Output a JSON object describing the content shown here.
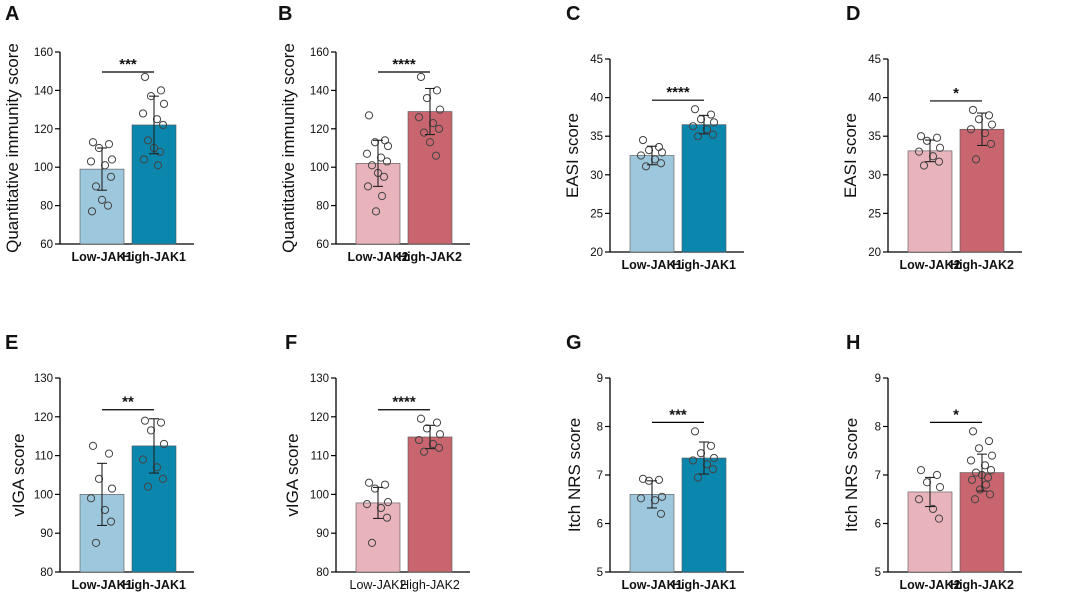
{
  "figure_title": "",
  "colors": {
    "low_jak1": "#9dc7dd",
    "high_jak1": "#0b86ad",
    "low_jak2": "#e8b3bb",
    "high_jak2": "#c9656f"
  },
  "chart_data": [
    {
      "panel": "A",
      "type": "bar",
      "title": "",
      "xlabel": "",
      "ylabel": "Quantitative immunity score",
      "ylim": [
        60,
        160
      ],
      "yticks": [
        60,
        80,
        100,
        120,
        140,
        160
      ],
      "categories": [
        "Low-JAK1",
        "High-JAK1"
      ],
      "values": [
        99,
        122
      ],
      "errors": [
        11,
        15
      ],
      "points": [
        [
          113,
          112,
          110,
          104,
          103,
          101,
          95,
          90,
          83,
          80,
          77
        ],
        [
          147,
          140,
          137,
          133,
          128,
          125,
          122,
          114,
          110,
          108,
          104,
          101
        ]
      ],
      "significance": "***",
      "category_label_bold": true,
      "colors": [
        "#9dc7dd",
        "#0b86ad"
      ]
    },
    {
      "panel": "B",
      "type": "bar",
      "title": "",
      "xlabel": "",
      "ylabel": "Quantitative immunity score",
      "ylim": [
        60,
        160
      ],
      "yticks": [
        60,
        80,
        100,
        120,
        140,
        160
      ],
      "categories": [
        "Low-JAK2",
        "High-JAK2"
      ],
      "values": [
        102,
        129
      ],
      "errors": [
        12,
        12
      ],
      "points": [
        [
          127,
          114,
          113,
          111,
          107,
          105,
          103,
          101,
          97,
          95,
          90,
          85,
          77
        ],
        [
          147,
          140,
          136,
          130,
          126,
          123,
          120,
          118,
          113,
          106
        ]
      ],
      "significance": "****",
      "category_label_bold": true,
      "colors": [
        "#e8b3bb",
        "#c9656f"
      ]
    },
    {
      "panel": "C",
      "type": "bar",
      "title": "",
      "xlabel": "",
      "ylabel": "EASI score",
      "ylim": [
        20,
        45
      ],
      "yticks": [
        20,
        25,
        30,
        35,
        40,
        45
      ],
      "categories": [
        "Low-JAK1",
        "High-JAK1"
      ],
      "values": [
        32.5,
        36.5
      ],
      "errors": [
        1.2,
        1.2
      ],
      "points": [
        [
          34.5,
          33.6,
          33.2,
          32.9,
          32.5,
          32.0,
          31.5,
          31.1
        ],
        [
          38.5,
          37.8,
          37.2,
          36.8,
          36.3,
          35.9,
          35.2,
          35.0
        ]
      ],
      "significance": "****",
      "category_label_bold": true,
      "colors": [
        "#9dc7dd",
        "#0b86ad"
      ]
    },
    {
      "panel": "D",
      "type": "bar",
      "title": "",
      "xlabel": "",
      "ylabel": "EASI score",
      "ylim": [
        20,
        45
      ],
      "yticks": [
        20,
        25,
        30,
        35,
        40,
        45
      ],
      "categories": [
        "Low-JAK2",
        "High-JAK2"
      ],
      "values": [
        33.1,
        35.9
      ],
      "errors": [
        1.4,
        2.1
      ],
      "points": [
        [
          35.0,
          34.8,
          34.4,
          33.5,
          33.0,
          32.4,
          31.7,
          31.2
        ],
        [
          38.4,
          37.7,
          37.2,
          36.5,
          35.9,
          35.4,
          34.0,
          32.0
        ]
      ],
      "significance": "*",
      "category_label_bold": true,
      "colors": [
        "#e8b3bb",
        "#c9656f"
      ]
    },
    {
      "panel": "E",
      "type": "bar",
      "title": "",
      "xlabel": "",
      "ylabel": "vIGA score",
      "ylim": [
        80,
        130
      ],
      "yticks": [
        80,
        90,
        100,
        110,
        120,
        130
      ],
      "categories": [
        "Low-JAK1",
        "High-JAK1"
      ],
      "values": [
        100,
        112.5
      ],
      "errors": [
        8,
        7
      ],
      "points": [
        [
          112.5,
          110.5,
          104,
          101.5,
          99,
          96,
          93,
          87.5
        ],
        [
          119,
          118.5,
          116.5,
          113,
          109,
          107,
          104,
          102
        ]
      ],
      "significance": "**",
      "category_label_bold": true,
      "colors": [
        "#9dc7dd",
        "#0b86ad"
      ]
    },
    {
      "panel": "F",
      "type": "bar",
      "title": "",
      "xlabel": "",
      "ylabel": "vIGA score",
      "ylim": [
        80,
        130
      ],
      "yticks": [
        80,
        90,
        100,
        110,
        120,
        130
      ],
      "categories": [
        "Low-JAK2",
        "High-JAK2"
      ],
      "values": [
        97.8,
        114.8
      ],
      "errors": [
        4,
        3
      ],
      "points": [
        [
          103,
          102.5,
          101.5,
          98,
          97.5,
          96.5,
          94,
          87.5
        ],
        [
          119.5,
          118.5,
          117,
          115.5,
          114,
          113,
          112,
          111
        ]
      ],
      "significance": "****",
      "category_label_bold": false,
      "colors": [
        "#e8b3bb",
        "#c9656f"
      ]
    },
    {
      "panel": "G",
      "type": "bar",
      "title": "",
      "xlabel": "",
      "ylabel": "Itch NRS score",
      "ylim": [
        5,
        9
      ],
      "yticks": [
        5,
        6,
        7,
        8,
        9
      ],
      "categories": [
        "Low-JAK1",
        "High-JAK1"
      ],
      "values": [
        6.6,
        7.35
      ],
      "errors": [
        0.28,
        0.33
      ],
      "points": [
        [
          6.92,
          6.9,
          6.88,
          6.55,
          6.52,
          6.48,
          6.2
        ],
        [
          7.9,
          7.6,
          7.45,
          7.35,
          7.3,
          7.22,
          7.12,
          6.95
        ]
      ],
      "significance": "***",
      "category_label_bold": true,
      "colors": [
        "#9dc7dd",
        "#0b86ad"
      ]
    },
    {
      "panel": "H",
      "type": "bar",
      "title": "",
      "xlabel": "",
      "ylabel": "Itch NRS score",
      "ylim": [
        5,
        9
      ],
      "yticks": [
        5,
        6,
        7,
        8,
        9
      ],
      "categories": [
        "Low-JAK2",
        "High-JAK2"
      ],
      "values": [
        6.65,
        7.05
      ],
      "errors": [
        0.3,
        0.38
      ],
      "points": [
        [
          7.1,
          7.0,
          6.85,
          6.75,
          6.5,
          6.3,
          6.1
        ],
        [
          7.9,
          7.7,
          7.55,
          7.4,
          7.3,
          7.2,
          7.1,
          7.05,
          7.0,
          6.95,
          6.9,
          6.8,
          6.7,
          6.6,
          6.5
        ]
      ],
      "significance": "*",
      "category_label_bold": true,
      "colors": [
        "#e8b3bb",
        "#c9656f"
      ]
    }
  ]
}
